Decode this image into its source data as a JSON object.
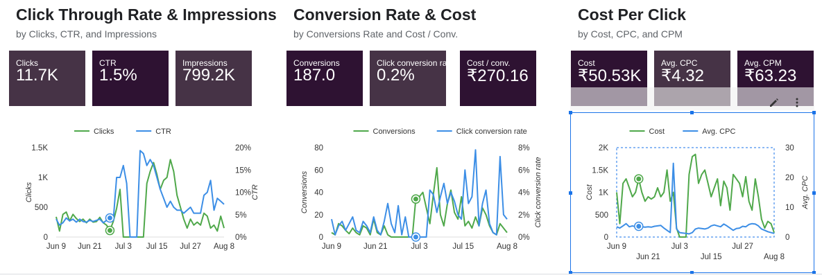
{
  "colors": {
    "green": "#4fa84a",
    "blue": "#3c8ee6",
    "card_dark": "#2e1232",
    "card_light": "#463346",
    "selection": "#1a73e8"
  },
  "sections": [
    {
      "title": "Click Through Rate & Impressions",
      "subtitle": "by Clicks, CTR, and Impressions",
      "cards": [
        {
          "label": "Clicks",
          "value": "11.7K"
        },
        {
          "label": "CTR",
          "value": "1.5%"
        },
        {
          "label": "Impressions",
          "value": "799.2K"
        }
      ]
    },
    {
      "title": "Conversion Rate & Cost",
      "subtitle": "by Conversions Rate and Cost / Conv.",
      "cards": [
        {
          "label": "Conversions",
          "value": "187.0"
        },
        {
          "label": "Click conversion rate",
          "value": "0.2%"
        },
        {
          "label": "Cost / conv.",
          "value": "₹270.16"
        }
      ]
    },
    {
      "title": "Cost Per Click",
      "subtitle": "by Cost, CPC, and CPM",
      "cards": [
        {
          "label": "Cost",
          "value": "₹50.53K"
        },
        {
          "label": "Avg. CPC",
          "value": "₹4.32"
        },
        {
          "label": "Avg. CPM",
          "value": "₹63.23"
        }
      ]
    }
  ],
  "toolbar": {
    "edit_icon": "pencil-icon",
    "more_icon": "more-vert-icon"
  },
  "chart_data": [
    {
      "type": "line",
      "legend": [
        "Clicks",
        "CTR"
      ],
      "ylabel": "Clicks",
      "y2label": "CTR",
      "y_ticks": [
        "0",
        "500",
        "1K",
        "1.5K"
      ],
      "ylim": [
        0,
        1500
      ],
      "y2_ticks": [
        "0%",
        "5%",
        "10%",
        "15%",
        "20%"
      ],
      "y2lim": [
        0,
        20
      ],
      "x_ticks": [
        "Jun 9",
        "Jun 21",
        "Jul 3",
        "Jul 15",
        "Jul 27",
        "Aug 8"
      ],
      "series": [
        {
          "name": "Clicks",
          "axis": "left",
          "values": [
            340,
            100,
            380,
            420,
            270,
            380,
            310,
            260,
            300,
            240,
            300,
            250,
            260,
            330,
            240,
            200,
            110,
            260,
            480,
            800,
            0,
            0,
            0,
            0,
            0,
            0,
            0,
            900,
            1100,
            1250,
            1050,
            800,
            950,
            1000,
            1300,
            1100,
            700,
            500,
            300,
            150,
            300,
            200,
            250,
            200,
            400,
            350,
            150,
            200,
            100,
            350,
            150
          ]
        },
        {
          "name": "CTR",
          "axis": "left",
          "values": [
            300,
            200,
            240,
            320,
            270,
            300,
            250,
            300,
            260,
            250,
            280,
            260,
            280,
            300,
            240,
            280,
            320,
            280,
            1000,
            1000,
            1200,
            900,
            0,
            0,
            0,
            1450,
            1400,
            1200,
            1300,
            1200,
            1000,
            800,
            650,
            500,
            600,
            500,
            450,
            450,
            400,
            450,
            500,
            400,
            400,
            400,
            700,
            750,
            950,
            450,
            650,
            600,
            550
          ]
        }
      ],
      "callout_values": [
        {
          "series": "CTR",
          "index": 16
        },
        {
          "series": "Clicks",
          "index": 16
        }
      ]
    },
    {
      "type": "line",
      "legend": [
        "Conversions",
        "Click conversion rate"
      ],
      "ylabel": "Conversions",
      "y2label": "Click conversion rate",
      "y_ticks": [
        "0",
        "20",
        "40",
        "60",
        "80"
      ],
      "ylim": [
        0,
        80
      ],
      "y2_ticks": [
        "0%",
        "2%",
        "4%",
        "6%",
        "8%"
      ],
      "y2lim": [
        0,
        8
      ],
      "x_ticks": [
        "Jun 9",
        "Jun 21",
        "Jul 3",
        "Jul 15",
        "Aug 8"
      ],
      "series": [
        {
          "name": "Conversions",
          "axis": "left",
          "values": [
            4,
            2,
            12,
            10,
            6,
            3,
            8,
            4,
            2,
            10,
            8,
            2,
            16,
            4,
            2,
            10,
            2,
            0,
            0,
            0,
            0,
            0,
            0,
            0,
            34,
            36,
            40,
            26,
            12,
            38,
            62,
            20,
            10,
            30,
            42,
            22,
            16,
            36,
            10,
            14,
            8,
            18,
            10,
            26,
            20,
            10,
            4,
            2,
            12,
            8,
            4
          ]
        },
        {
          "name": "Click conversion rate",
          "axis": "left",
          "values": [
            16,
            2,
            10,
            14,
            6,
            12,
            18,
            6,
            4,
            14,
            10,
            4,
            18,
            6,
            2,
            14,
            30,
            12,
            4,
            28,
            2,
            18,
            0,
            0,
            0,
            0,
            0,
            0,
            42,
            38,
            22,
            36,
            48,
            30,
            40,
            32,
            20,
            16,
            60,
            30,
            36,
            78,
            10,
            30,
            42,
            12,
            4,
            2,
            72,
            20,
            16
          ]
        }
      ],
      "callout_values": [
        {
          "series": "Click conversion rate",
          "index": 24
        },
        {
          "series": "Conversions",
          "index": 24
        }
      ]
    },
    {
      "type": "line",
      "legend": [
        "Cost",
        "Avg. CPC"
      ],
      "ylabel": "Cost",
      "y2label": "Avg. CPC",
      "y_ticks": [
        "0",
        "500",
        "1K",
        "1.5K",
        "2K"
      ],
      "ylim": [
        0,
        2000
      ],
      "y2_ticks": [
        "0",
        "10",
        "20",
        "30"
      ],
      "y2lim": [
        0,
        30
      ],
      "x_ticks": [
        "Jun 9",
        "Jun 21",
        "Jul 3",
        "Jul 15",
        "Jul 27",
        "Aug 8"
      ],
      "series": [
        {
          "name": "Cost",
          "axis": "left",
          "values": [
            1000,
            300,
            1200,
            1300,
            1100,
            900,
            1000,
            1300,
            1000,
            800,
            900,
            850,
            900,
            1100,
            900,
            1000,
            1500,
            800,
            1000,
            200,
            0,
            0,
            0,
            1400,
            1800,
            1850,
            1200,
            1400,
            1500,
            1200,
            900,
            1100,
            1300,
            700,
            1250,
            1100,
            600,
            1400,
            1300,
            1200,
            900,
            1350,
            800,
            600,
            1300,
            900,
            400,
            200,
            350,
            300,
            100
          ]
        },
        {
          "name": "Avg. CPC",
          "axis": "left",
          "values": [
            230,
            200,
            250,
            300,
            230,
            250,
            230,
            240,
            230,
            220,
            230,
            220,
            240,
            250,
            260,
            200,
            150,
            100,
            1650,
            180,
            100,
            90,
            80,
            70,
            100,
            180,
            200,
            190,
            180,
            200,
            250,
            270,
            250,
            230,
            290,
            250,
            200,
            150,
            190,
            200,
            240,
            230,
            280,
            300,
            290,
            250,
            180,
            150,
            120,
            100,
            80
          ]
        }
      ],
      "callout_values": [
        {
          "series": "Cost",
          "index": 7
        },
        {
          "series": "Avg. CPC",
          "index": 7
        }
      ]
    }
  ]
}
